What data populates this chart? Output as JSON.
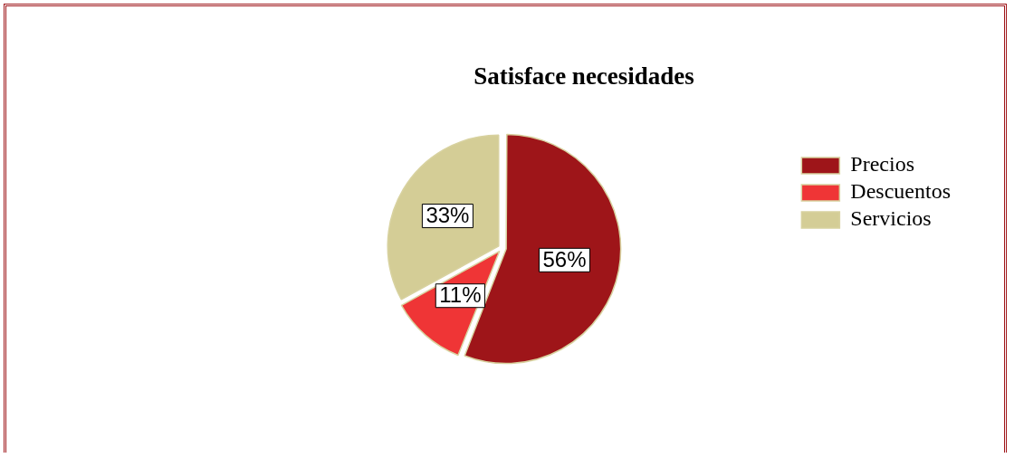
{
  "chart_data": {
    "type": "pie",
    "title": "Satisface necesidades",
    "categories": [
      "Precios",
      "Descuentos",
      "Servicios"
    ],
    "values": [
      56,
      11,
      33
    ],
    "colors": [
      "#9e1519",
      "#ef3536",
      "#d4cd96"
    ],
    "value_labels": [
      "56%",
      "11%",
      "33%"
    ],
    "legend": "right"
  }
}
